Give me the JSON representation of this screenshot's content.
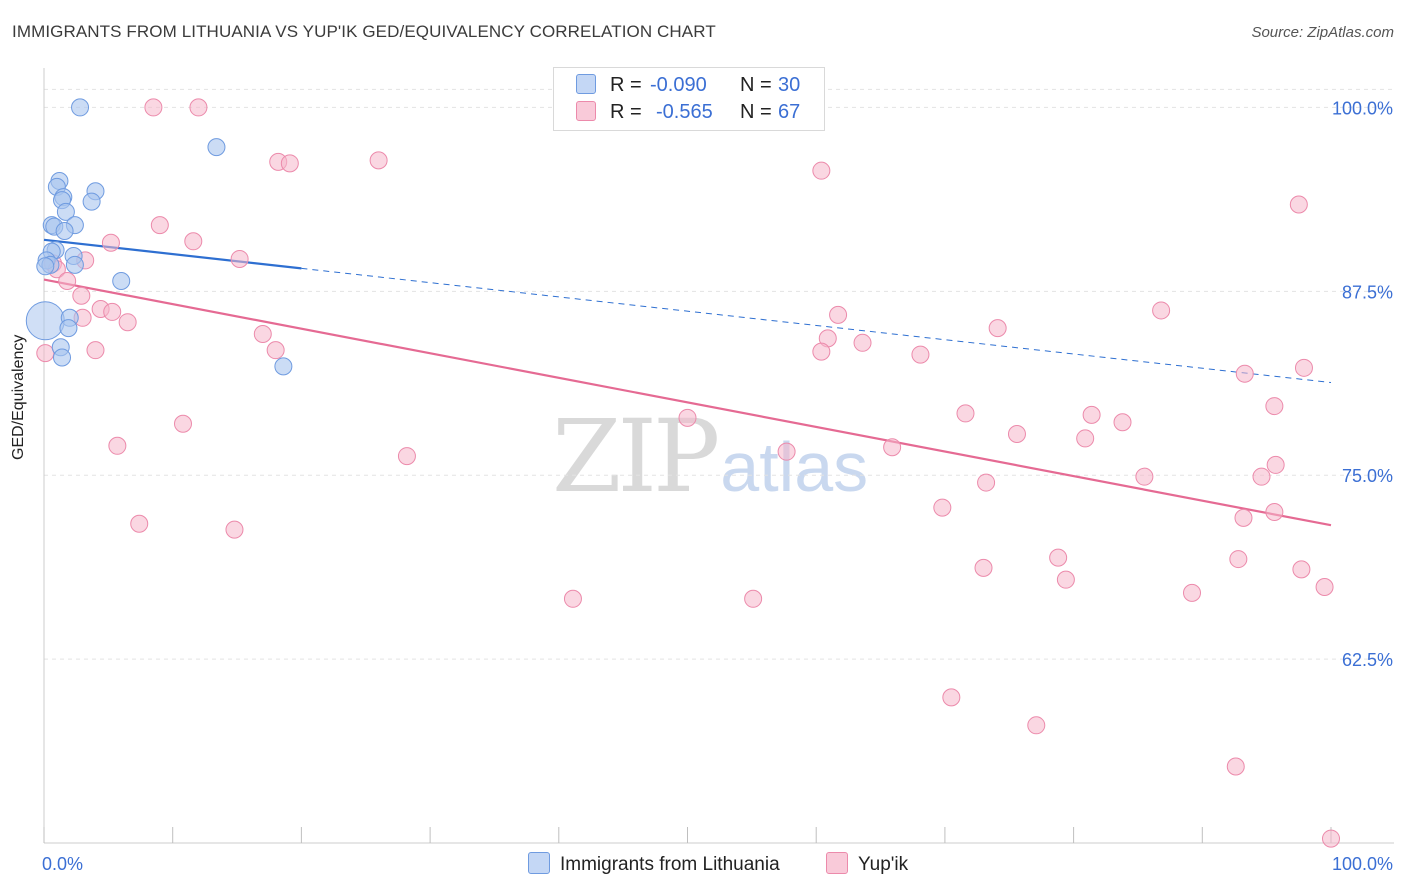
{
  "title": "IMMIGRANTS FROM LITHUANIA VS YUP'IK GED/EQUIVALENCY CORRELATION CHART",
  "source": "Source: ZipAtlas.com",
  "watermark": {
    "zip": "ZIP",
    "atlas": "atlas"
  },
  "legend": {
    "r_label": "R =",
    "n_label": "N =",
    "rows": [
      {
        "r": "-0.090",
        "n": "30"
      },
      {
        "r": "-0.565",
        "n": "67"
      }
    ]
  },
  "chart_data": {
    "type": "scatter",
    "title": "IMMIGRANTS FROM LITHUANIA VS YUP'IK GED/EQUIVALENCY CORRELATION CHART",
    "xlabel": "",
    "ylabel": "GED/Equivalency",
    "xlim": [
      0,
      100
    ],
    "ylim": [
      50.0,
      102.0
    ],
    "x_tick_labels": [
      "0.0%",
      "100.0%"
    ],
    "y_ticks": [
      62.5,
      75.0,
      87.5,
      100.0
    ],
    "y_tick_labels": [
      "62.5%",
      "75.0%",
      "87.5%",
      "100.0%"
    ],
    "grid": true,
    "legend_position": "top-center",
    "colors": {
      "lithuania_fill": "#a9c4ee",
      "lithuania_stroke": "#6f9be0",
      "lithuania_line": "#2e6fd1",
      "yupik_fill": "#f6b6cb",
      "yupik_stroke": "#ec8aab",
      "yupik_line": "#e56a93",
      "tick_label": "#3b6fd4",
      "grid": "#e3e3e3"
    },
    "series": [
      {
        "name": "Immigrants from Lithuania",
        "r": -0.09,
        "n": 30,
        "trend": {
          "x0": 0,
          "y0": 91.0,
          "x1": 100,
          "y1": 81.3,
          "solid_until_x": 20
        },
        "points": [
          [
            2.8,
            100.0
          ],
          [
            13.4,
            97.3
          ],
          [
            1.2,
            95.0
          ],
          [
            1.0,
            94.6
          ],
          [
            4.0,
            94.3
          ],
          [
            1.5,
            93.9
          ],
          [
            1.4,
            93.7
          ],
          [
            3.7,
            93.6
          ],
          [
            1.7,
            92.9
          ],
          [
            0.6,
            92.0
          ],
          [
            2.4,
            92.0
          ],
          [
            0.8,
            91.9
          ],
          [
            1.6,
            91.6
          ],
          [
            0.9,
            90.3
          ],
          [
            0.6,
            90.2
          ],
          [
            2.3,
            89.9
          ],
          [
            0.2,
            89.6
          ],
          [
            0.5,
            89.3
          ],
          [
            2.4,
            89.3
          ],
          [
            0.1,
            89.2
          ],
          [
            6.0,
            88.2
          ],
          [
            2.0,
            85.7
          ],
          [
            1.9,
            85.0
          ],
          [
            1.3,
            83.7
          ],
          [
            1.4,
            83.0
          ],
          [
            18.6,
            82.4
          ]
        ],
        "big_point": {
          "x": 0.1,
          "y": 85.5,
          "size": "large"
        }
      },
      {
        "name": "Yup'ik",
        "r": -0.565,
        "n": 67,
        "trend": {
          "x0": 0,
          "y0": 88.3,
          "x1": 100,
          "y1": 71.6
        },
        "points": [
          [
            8.5,
            100.0
          ],
          [
            12.0,
            100.0
          ],
          [
            18.2,
            96.3
          ],
          [
            19.1,
            96.2
          ],
          [
            26.0,
            96.4
          ],
          [
            60.4,
            95.7
          ],
          [
            97.5,
            93.4
          ],
          [
            9.0,
            92.0
          ],
          [
            5.2,
            90.8
          ],
          [
            11.6,
            90.9
          ],
          [
            15.2,
            89.7
          ],
          [
            3.2,
            89.6
          ],
          [
            0.7,
            89.4
          ],
          [
            1.0,
            89.0
          ],
          [
            1.8,
            88.2
          ],
          [
            2.9,
            87.2
          ],
          [
            4.4,
            86.3
          ],
          [
            5.3,
            86.1
          ],
          [
            3.0,
            85.7
          ],
          [
            6.5,
            85.4
          ],
          [
            61.7,
            85.9
          ],
          [
            86.8,
            86.2
          ],
          [
            17.0,
            84.6
          ],
          [
            74.1,
            85.0
          ],
          [
            60.9,
            84.3
          ],
          [
            63.6,
            84.0
          ],
          [
            18.0,
            83.5
          ],
          [
            4.0,
            83.5
          ],
          [
            60.4,
            83.4
          ],
          [
            68.1,
            83.2
          ],
          [
            0.1,
            83.3
          ],
          [
            93.3,
            81.9
          ],
          [
            97.9,
            82.3
          ],
          [
            95.6,
            79.7
          ],
          [
            10.8,
            78.5
          ],
          [
            50.0,
            78.9
          ],
          [
            71.6,
            79.2
          ],
          [
            75.6,
            77.8
          ],
          [
            81.4,
            79.1
          ],
          [
            83.8,
            78.6
          ],
          [
            80.9,
            77.5
          ],
          [
            5.7,
            77.0
          ],
          [
            28.2,
            76.3
          ],
          [
            57.7,
            76.6
          ],
          [
            65.9,
            76.9
          ],
          [
            73.2,
            74.5
          ],
          [
            85.5,
            74.9
          ],
          [
            94.6,
            74.9
          ],
          [
            95.7,
            75.7
          ],
          [
            69.8,
            72.8
          ],
          [
            93.2,
            72.1
          ],
          [
            95.6,
            72.5
          ],
          [
            7.4,
            71.7
          ],
          [
            14.8,
            71.3
          ],
          [
            78.8,
            69.4
          ],
          [
            92.8,
            69.3
          ],
          [
            73.0,
            68.7
          ],
          [
            97.7,
            68.6
          ],
          [
            79.4,
            67.9
          ],
          [
            99.5,
            67.4
          ],
          [
            89.2,
            67.0
          ],
          [
            41.1,
            66.6
          ],
          [
            55.1,
            66.6
          ],
          [
            70.5,
            59.9
          ],
          [
            77.1,
            58.0
          ],
          [
            92.6,
            55.2
          ],
          [
            100.0,
            50.3
          ]
        ]
      }
    ]
  },
  "bottom_legend": {
    "items": [
      "Immigrants from Lithuania",
      "Yup'ik"
    ]
  }
}
